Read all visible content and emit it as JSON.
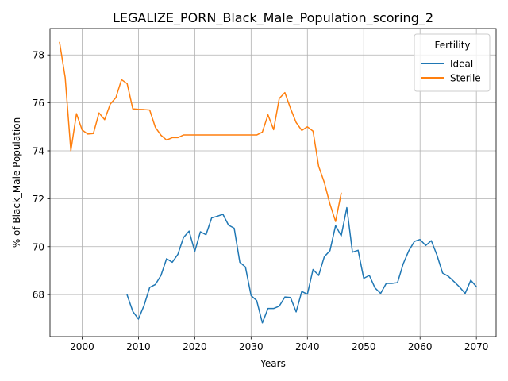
{
  "chart_data": {
    "type": "line",
    "title": "LEGALIZE_PORN_Black_Male_Population_scoring_2",
    "xlabel": "Years",
    "ylabel": "% of Black_Male Population",
    "xlim": [
      1994.3,
      2073.5
    ],
    "ylim": [
      66.25,
      79.1
    ],
    "xticks": [
      2000,
      2010,
      2020,
      2030,
      2040,
      2050,
      2060,
      2070
    ],
    "yticks": [
      68,
      70,
      72,
      74,
      76,
      78
    ],
    "grid": true,
    "legend": {
      "title": "Fertility",
      "position": "top-right"
    },
    "series": [
      {
        "name": "Ideal",
        "color": "#1f77b4",
        "x": [
          2008,
          2009,
          2010,
          2011,
          2012,
          2013,
          2014,
          2015,
          2016,
          2017,
          2018,
          2019,
          2020,
          2021,
          2022,
          2023,
          2024,
          2025,
          2026,
          2027,
          2028,
          2029,
          2030,
          2031,
          2032,
          2033,
          2034,
          2035,
          2036,
          2037,
          2038,
          2039,
          2040,
          2041,
          2042,
          2043,
          2044,
          2045,
          2046,
          2047,
          2048,
          2049,
          2050,
          2051,
          2052,
          2053,
          2054,
          2055,
          2056,
          2057,
          2058,
          2059,
          2060,
          2061,
          2062,
          2063,
          2064,
          2065,
          2066,
          2067,
          2068,
          2069,
          2070
        ],
        "y": [
          67.98,
          67.3,
          66.98,
          67.55,
          68.3,
          68.42,
          68.8,
          69.5,
          69.35,
          69.68,
          70.38,
          70.65,
          69.8,
          70.62,
          70.5,
          71.2,
          71.27,
          71.35,
          70.9,
          70.77,
          69.35,
          69.15,
          67.96,
          67.75,
          66.82,
          67.42,
          67.42,
          67.52,
          67.9,
          67.88,
          67.28,
          68.13,
          68.02,
          69.05,
          68.8,
          69.58,
          69.83,
          70.88,
          70.45,
          71.63,
          69.77,
          69.85,
          68.68,
          68.8,
          68.28,
          68.05,
          68.47,
          68.47,
          68.5,
          69.28,
          69.83,
          70.22,
          70.3,
          70.05,
          70.25,
          69.65,
          68.9,
          68.77,
          68.55,
          68.32,
          68.05,
          68.6,
          68.33
        ]
      },
      {
        "name": "Sterile",
        "color": "#ff7f0e",
        "x": [
          1996,
          1997,
          1998,
          1999,
          2000,
          2001,
          2002,
          2003,
          2004,
          2005,
          2006,
          2007,
          2008,
          2009,
          2010,
          2011,
          2012,
          2013,
          2014,
          2015,
          2016,
          2017,
          2018,
          2019,
          2020,
          2021,
          2022,
          2023,
          2024,
          2025,
          2026,
          2027,
          2028,
          2029,
          2030,
          2031,
          2032,
          2033,
          2034,
          2035,
          2036,
          2037,
          2038,
          2039,
          2040,
          2041,
          2042,
          2043,
          2044,
          2045,
          2046
        ],
        "y": [
          78.52,
          77.05,
          74.0,
          75.55,
          74.87,
          74.7,
          74.72,
          75.58,
          75.3,
          75.95,
          76.22,
          76.97,
          76.8,
          75.75,
          75.73,
          75.72,
          75.7,
          74.98,
          74.65,
          74.45,
          74.55,
          74.55,
          74.66,
          74.66,
          74.66,
          74.66,
          74.66,
          74.66,
          74.66,
          74.66,
          74.66,
          74.66,
          74.66,
          74.66,
          74.66,
          74.66,
          74.78,
          75.5,
          74.88,
          76.18,
          76.43,
          75.77,
          75.18,
          74.85,
          75.0,
          74.82,
          73.35,
          72.68,
          71.78,
          71.05,
          72.23
        ]
      }
    ]
  }
}
